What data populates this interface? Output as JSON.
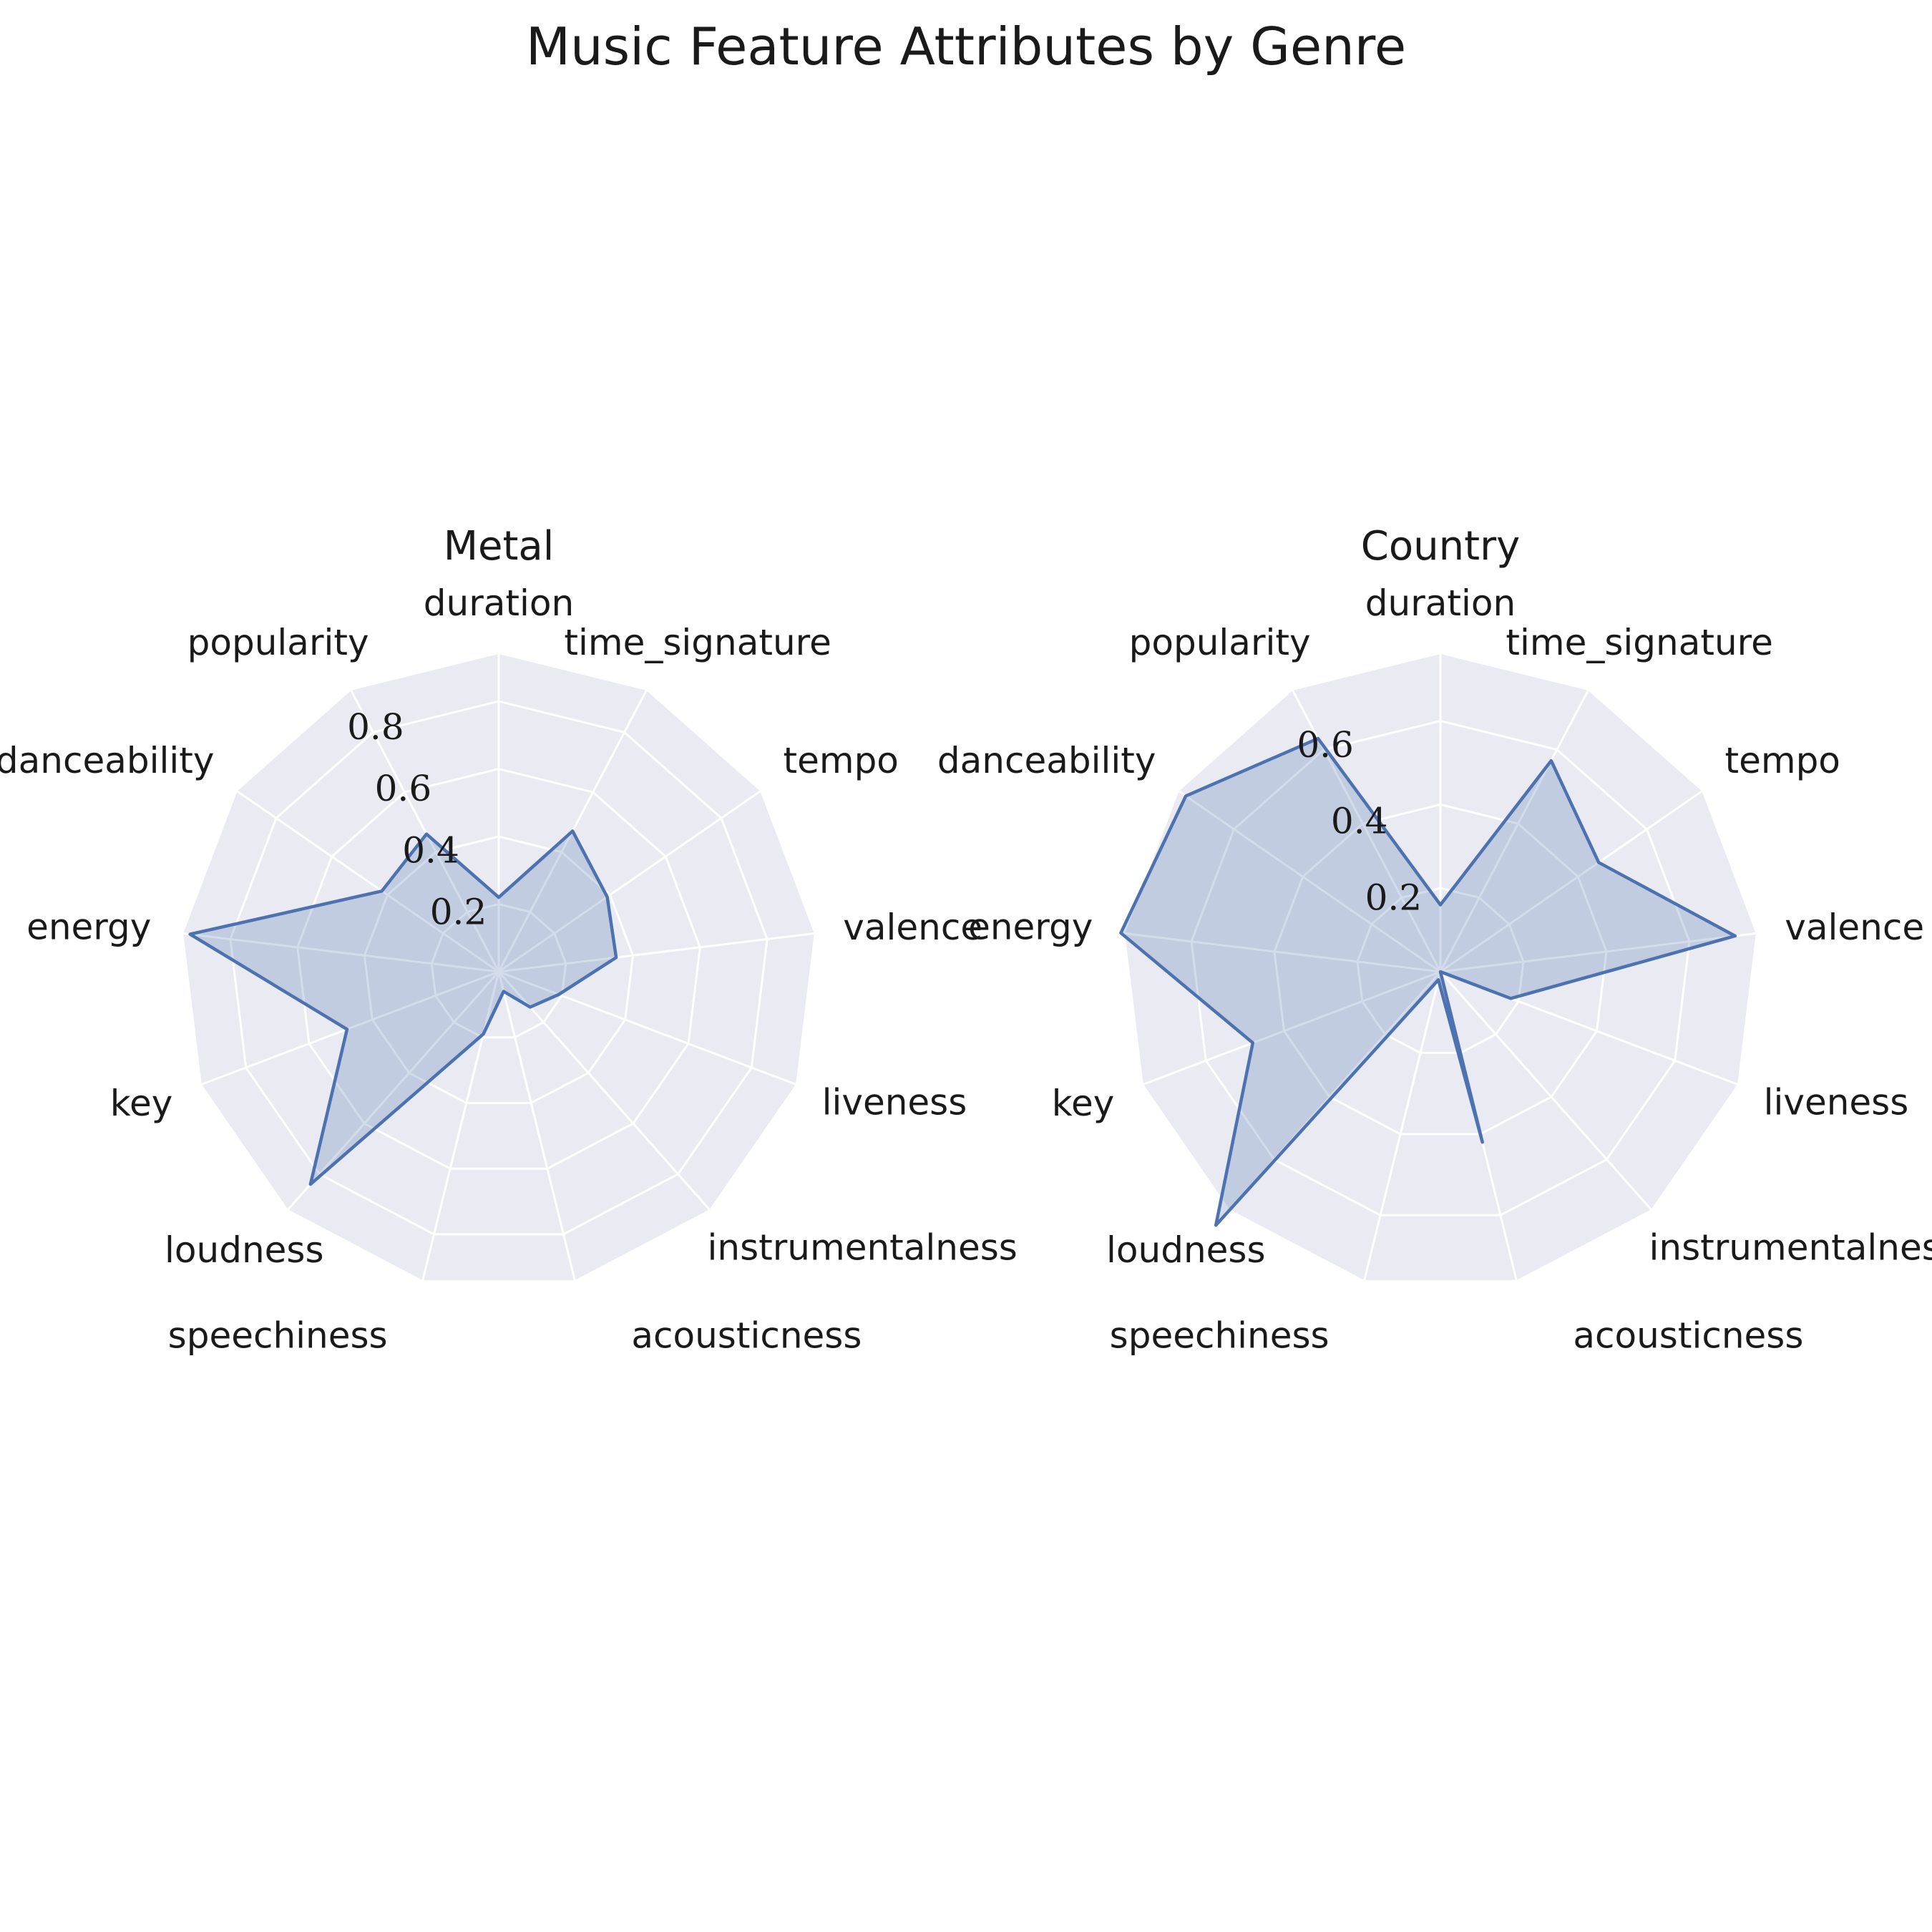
{
  "title": "Music Feature Attributes by Genre",
  "colors": {
    "series": "#4c72b0",
    "background": "#eaeaf2",
    "grid": "#ffffff",
    "text": "#1a1a1a"
  },
  "chart_data": [
    {
      "type": "radar",
      "title": "Metal",
      "categories": [
        "duration",
        "time_signature",
        "tempo",
        "valence",
        "liveness",
        "instrumentalness",
        "acousticness",
        "speechiness",
        "loudness",
        "key",
        "energy",
        "danceability",
        "popularity"
      ],
      "series": [
        {
          "values": [
            0.22,
            0.47,
            0.39,
            0.35,
            0.19,
            0.14,
            0.06,
            0.19,
            0.84,
            0.48,
            0.92,
            0.42,
            0.46
          ]
        }
      ],
      "rticks": [
        0.2,
        0.4,
        0.6,
        0.8
      ],
      "rtick_labels": [
        "0.2",
        "0.4",
        "0.6",
        "0.8"
      ],
      "rlim": [
        0,
        0.94
      ],
      "grid": true
    },
    {
      "type": "radar",
      "title": "Country",
      "categories": [
        "duration",
        "time_signature",
        "tempo",
        "valence",
        "liveness",
        "instrumentalness",
        "acousticness",
        "speechiness",
        "loudness",
        "key",
        "energy",
        "danceability",
        "popularity"
      ],
      "series": [
        {
          "values": [
            0.16,
            0.57,
            0.46,
            0.71,
            0.18,
            0.0,
            0.42,
            0.02,
            0.81,
            0.48,
            0.77,
            0.74,
            0.63
          ]
        }
      ],
      "rticks": [
        0.2,
        0.4,
        0.6
      ],
      "rtick_labels": [
        "0.2",
        "0.4",
        "0.6"
      ],
      "rlim": [
        0,
        0.76
      ],
      "grid": true
    }
  ]
}
